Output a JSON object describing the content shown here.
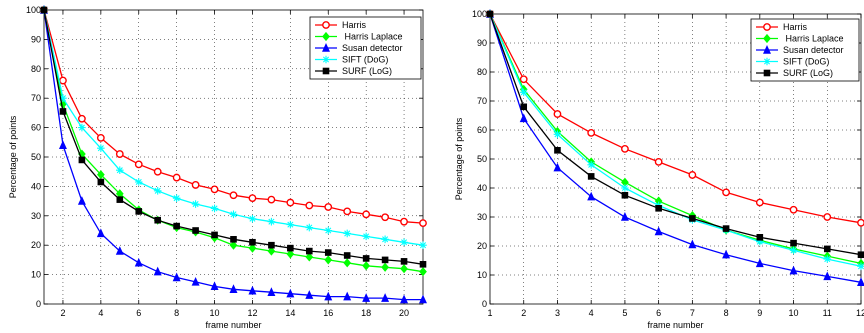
{
  "chart_data": [
    {
      "type": "line",
      "xlabel": "frame number",
      "ylabel": "Percentage of points",
      "xlim": [
        1,
        21
      ],
      "ylim": [
        0,
        100
      ],
      "xticks": [
        2,
        4,
        6,
        8,
        10,
        12,
        14,
        16,
        18,
        20
      ],
      "yticks": [
        0,
        10,
        20,
        30,
        40,
        50,
        60,
        70,
        80,
        90,
        100
      ],
      "grid": true,
      "legend_position": "top-right",
      "x": [
        1,
        2,
        3,
        4,
        5,
        6,
        7,
        8,
        9,
        10,
        11,
        12,
        13,
        14,
        15,
        16,
        17,
        18,
        19,
        20,
        21
      ],
      "series": [
        {
          "name": "Harris",
          "color": "#ff0000",
          "marker": "circle",
          "values": [
            100,
            76,
            63,
            56.5,
            51,
            47.5,
            45,
            43,
            40.5,
            39,
            37,
            36,
            35.5,
            34.5,
            33.5,
            33,
            31.5,
            30.5,
            29.5,
            28,
            27.5
          ]
        },
        {
          "name": " Harris Laplace",
          "color": "#00ff00",
          "marker": "diamond",
          "values": [
            100,
            68,
            51,
            44,
            37.5,
            32,
            28.5,
            26,
            24.5,
            22.5,
            20,
            19,
            18,
            17,
            16,
            15,
            14,
            13,
            12.5,
            12,
            11
          ]
        },
        {
          "name": "Susan detector",
          "color": "#0000ff",
          "marker": "triangle",
          "values": [
            100,
            54,
            35,
            24,
            18,
            14,
            11,
            9,
            7.5,
            6,
            5,
            4.5,
            4,
            3.5,
            3,
            2.5,
            2.5,
            2,
            2,
            1.5,
            1.5
          ]
        },
        {
          "name": "SIFT (DoG)",
          "color": "#00ffff",
          "marker": "star",
          "values": [
            100,
            70,
            60,
            53,
            45.5,
            41.5,
            38.5,
            36,
            34,
            32.5,
            30.5,
            29,
            28,
            27,
            26,
            25,
            24,
            23,
            22,
            21,
            20
          ]
        },
        {
          "name": "SURF (LoG)",
          "color": "#000000",
          "marker": "square",
          "values": [
            100,
            65.5,
            49,
            41.5,
            35.5,
            31.5,
            28.5,
            26.5,
            25,
            23.5,
            22,
            21,
            20,
            19,
            18,
            17.5,
            16.5,
            15.5,
            15,
            14.5,
            13.5
          ]
        }
      ]
    },
    {
      "type": "line",
      "xlabel": "frame number",
      "ylabel": "Percentage of points",
      "xlim": [
        1,
        12
      ],
      "ylim": [
        0,
        100
      ],
      "xticks": [
        1,
        2,
        3,
        4,
        5,
        6,
        7,
        8,
        9,
        10,
        11,
        12
      ],
      "yticks": [
        0,
        10,
        20,
        30,
        40,
        50,
        60,
        70,
        80,
        90,
        100
      ],
      "grid": true,
      "legend_position": "top-right",
      "x": [
        1,
        2,
        3,
        4,
        5,
        6,
        7,
        8,
        9,
        10,
        11,
        12
      ],
      "series": [
        {
          "name": "Harris",
          "color": "#ff0000",
          "marker": "circle",
          "values": [
            100,
            77.5,
            65.5,
            59,
            53.5,
            49,
            44.5,
            38.5,
            35,
            32.5,
            30,
            28
          ]
        },
        {
          "name": " Harris Laplace",
          "color": "#00ff00",
          "marker": "diamond",
          "values": [
            100,
            74,
            59.5,
            49,
            42,
            35.5,
            30.5,
            25.5,
            22,
            19,
            16.5,
            14
          ]
        },
        {
          "name": "Susan detector",
          "color": "#0000ff",
          "marker": "triangle",
          "values": [
            100,
            64,
            47,
            37,
            30,
            25,
            20.5,
            17,
            14,
            11.5,
            9.5,
            7.5
          ]
        },
        {
          "name": "SIFT (DoG)",
          "color": "#00ffff",
          "marker": "star",
          "values": [
            100,
            73,
            58.5,
            48,
            40,
            34,
            29,
            25.5,
            21.5,
            18.5,
            15.5,
            13
          ]
        },
        {
          "name": "SURF (LoG)",
          "color": "#000000",
          "marker": "square",
          "values": [
            100,
            68,
            53,
            44,
            37.5,
            33,
            29.5,
            26,
            23,
            21,
            19,
            17
          ]
        }
      ]
    }
  ]
}
